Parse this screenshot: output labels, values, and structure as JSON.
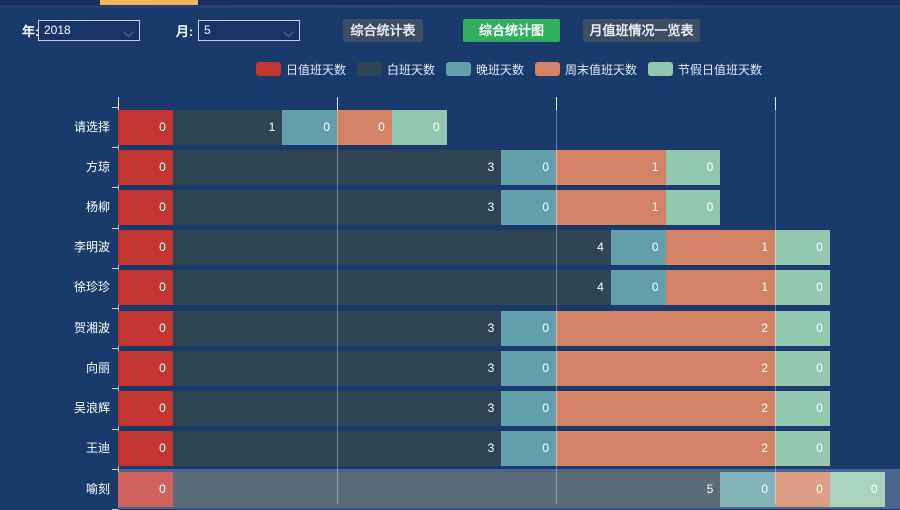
{
  "filters": {
    "year_label": "年:",
    "year_value": "2018",
    "month_label": "月:",
    "month_value": "5"
  },
  "toolbar": {
    "buttons": [
      {
        "label": "综合统计表",
        "active": false
      },
      {
        "label": "综合统计图",
        "active": true
      },
      {
        "label": "月值班情况一览表",
        "active": false
      }
    ]
  },
  "colors": {
    "background": "#1a3a6c",
    "active_button_green": "#2eae5e",
    "tab_orange": "#eeb45e",
    "button_slate": "#3d4d63"
  },
  "chart_data": {
    "type": "bar",
    "orientation": "horizontal",
    "stacked": true,
    "grid": true,
    "legend_position": "top",
    "value_labels": "inside-right",
    "categories": [
      "请选择",
      "方琼",
      "杨柳",
      "李明波",
      "徐珍珍",
      "贺湘波",
      "向丽",
      "吴浪辉",
      "王迪",
      "喻刻"
    ],
    "series": [
      {
        "name": "日值班天数",
        "color": "#c23531",
        "values": [
          0,
          0,
          0,
          0,
          0,
          0,
          0,
          0,
          0,
          0
        ]
      },
      {
        "name": "白班天数",
        "color": "#2f4554",
        "values": [
          1,
          3,
          3,
          4,
          4,
          3,
          3,
          3,
          3,
          5
        ]
      },
      {
        "name": "晚班天数",
        "color": "#61a0a8",
        "values": [
          0,
          0,
          0,
          0,
          0,
          0,
          0,
          0,
          0,
          0
        ]
      },
      {
        "name": "周末值班天数",
        "color": "#d48265",
        "values": [
          0,
          1,
          1,
          1,
          1,
          2,
          2,
          2,
          2,
          0
        ]
      },
      {
        "name": "节假日值班天数",
        "color": "#91c7ae",
        "values": [
          0,
          0,
          0,
          0,
          0,
          0,
          0,
          0,
          0,
          0
        ]
      }
    ],
    "highlighted_category": "喻刻"
  }
}
